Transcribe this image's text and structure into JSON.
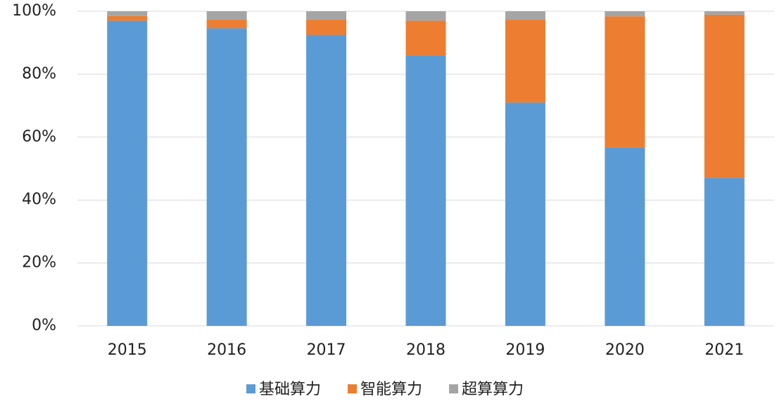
{
  "chart_data": {
    "type": "stacked_bar",
    "categories": [
      "2015",
      "2016",
      "2017",
      "2018",
      "2019",
      "2020",
      "2021"
    ],
    "series": [
      {
        "name": "基础算力",
        "color": "#5b9bd5",
        "values": [
          97,
          94.6,
          92.5,
          86,
          71,
          56.8,
          47
        ]
      },
      {
        "name": "智能算力",
        "color": "#ed7d31",
        "values": [
          1.5,
          2.7,
          4.8,
          11,
          26.3,
          41.6,
          51.9
        ]
      },
      {
        "name": "超算算力",
        "color": "#a5a5a5",
        "values": [
          1.5,
          2.7,
          2.7,
          3,
          2.7,
          1.6,
          1.1
        ]
      }
    ],
    "ylim": [
      0,
      100
    ],
    "yticks": [
      {
        "value": 0,
        "label": "0%"
      },
      {
        "value": 20,
        "label": "20%"
      },
      {
        "value": 40,
        "label": "40%"
      },
      {
        "value": 60,
        "label": "60%"
      },
      {
        "value": 80,
        "label": "80%"
      },
      {
        "value": 100,
        "label": "100%"
      }
    ],
    "grid": true,
    "legend": "bottom"
  }
}
